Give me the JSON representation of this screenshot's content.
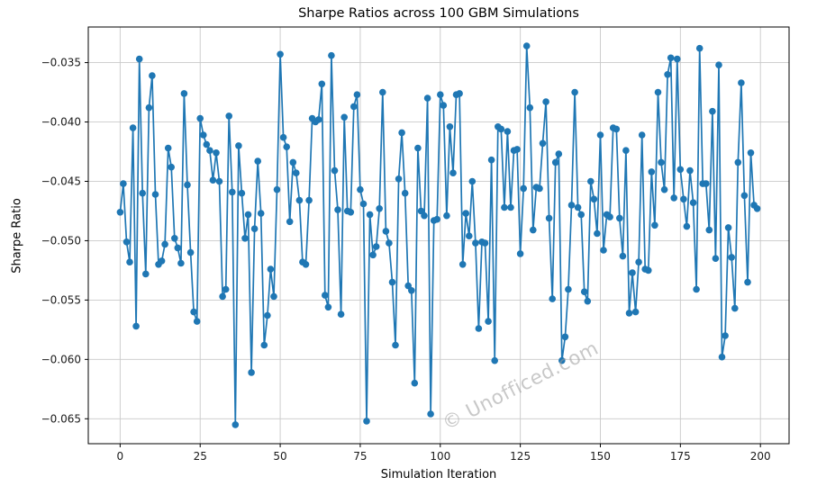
{
  "figure": {
    "title": "Sharpe Ratios across 100 GBM Simulations",
    "watermark": "© Unofficed.com",
    "background": "#ffffff"
  },
  "chart_data": {
    "type": "line",
    "title": "Sharpe Ratios across 100 GBM Simulations",
    "xlabel": "Simulation Iteration",
    "ylabel": "Sharpe Ratio",
    "series_name": "sharpe-ratio-per-iteration",
    "n_points": 200,
    "x_is_index": true,
    "marker": "circle",
    "line_color": "#1f77b4",
    "marker_color": "#1f77b4",
    "grid": true,
    "grid_color": "#c9c9c9",
    "spine_color": "#000000",
    "text_color": "#1a1a1a",
    "x_ticks": [
      0,
      25,
      50,
      75,
      100,
      125,
      150,
      175,
      200
    ],
    "x_tick_labels": [
      "0",
      "25",
      "50",
      "75",
      "100",
      "125",
      "150",
      "175",
      "200"
    ],
    "y_ticks": [
      -0.035,
      -0.04,
      -0.045,
      -0.05,
      -0.055,
      -0.06,
      -0.065
    ],
    "y_tick_labels": [
      "−0.035",
      "−0.040",
      "−0.045",
      "−0.050",
      "−0.055",
      "−0.060",
      "−0.065"
    ],
    "xlim": [
      -9.95,
      208.95
    ],
    "ylim": [
      -0.0671,
      -0.032
    ],
    "values": [
      -0.0476,
      -0.0452,
      -0.0501,
      -0.0518,
      -0.0405,
      -0.0572,
      -0.0347,
      -0.046,
      -0.0528,
      -0.0388,
      -0.0361,
      -0.0461,
      -0.052,
      -0.0517,
      -0.0503,
      -0.0422,
      -0.0438,
      -0.0498,
      -0.0506,
      -0.0519,
      -0.0376,
      -0.0453,
      -0.051,
      -0.056,
      -0.0568,
      -0.0397,
      -0.0411,
      -0.0419,
      -0.0424,
      -0.0449,
      -0.0426,
      -0.045,
      -0.0547,
      -0.0541,
      -0.0395,
      -0.0459,
      -0.0655,
      -0.042,
      -0.046,
      -0.0498,
      -0.0478,
      -0.0611,
      -0.049,
      -0.0433,
      -0.0477,
      -0.0588,
      -0.0563,
      -0.0524,
      -0.0547,
      -0.0457,
      -0.0343,
      -0.0413,
      -0.0421,
      -0.0484,
      -0.0434,
      -0.0443,
      -0.0466,
      -0.0518,
      -0.052,
      -0.0466,
      -0.0397,
      -0.04,
      -0.0398,
      -0.0368,
      -0.0546,
      -0.0556,
      -0.0344,
      -0.0441,
      -0.0474,
      -0.0562,
      -0.0396,
      -0.0475,
      -0.0476,
      -0.0387,
      -0.0377,
      -0.0457,
      -0.0469,
      -0.0652,
      -0.0478,
      -0.0512,
      -0.0505,
      -0.0473,
      -0.0375,
      -0.0492,
      -0.0502,
      -0.0535,
      -0.0588,
      -0.0448,
      -0.0409,
      -0.046,
      -0.0538,
      -0.0542,
      -0.062,
      -0.0422,
      -0.0475,
      -0.0479,
      -0.038,
      -0.0646,
      -0.0483,
      -0.0482,
      -0.0377,
      -0.0386,
      -0.0479,
      -0.0404,
      -0.0443,
      -0.0377,
      -0.0376,
      -0.052,
      -0.0477,
      -0.0496,
      -0.045,
      -0.0502,
      -0.0574,
      -0.0501,
      -0.0502,
      -0.0568,
      -0.0432,
      -0.0601,
      -0.0404,
      -0.0406,
      -0.0472,
      -0.0408,
      -0.0472,
      -0.0424,
      -0.0423,
      -0.0511,
      -0.0456,
      -0.0336,
      -0.0388,
      -0.0491,
      -0.0455,
      -0.0456,
      -0.0418,
      -0.0383,
      -0.0481,
      -0.0549,
      -0.0434,
      -0.0427,
      -0.0601,
      -0.0581,
      -0.0541,
      -0.047,
      -0.0375,
      -0.0472,
      -0.0478,
      -0.0543,
      -0.0551,
      -0.045,
      -0.0465,
      -0.0494,
      -0.0411,
      -0.0508,
      -0.0478,
      -0.048,
      -0.0405,
      -0.0406,
      -0.0481,
      -0.0513,
      -0.0424,
      -0.0561,
      -0.0527,
      -0.056,
      -0.0518,
      -0.0411,
      -0.0524,
      -0.0525,
      -0.0442,
      -0.0487,
      -0.0375,
      -0.0434,
      -0.0457,
      -0.036,
      -0.0346,
      -0.0464,
      -0.0347,
      -0.044,
      -0.0465,
      -0.0488,
      -0.0441,
      -0.0468,
      -0.0541,
      -0.0338,
      -0.0452,
      -0.0452,
      -0.0491,
      -0.0391,
      -0.0515,
      -0.0352,
      -0.0598,
      -0.058,
      -0.0489,
      -0.0514,
      -0.0557,
      -0.0434,
      -0.0367,
      -0.0462,
      -0.0535,
      -0.0426,
      -0.047,
      -0.0473
    ]
  }
}
